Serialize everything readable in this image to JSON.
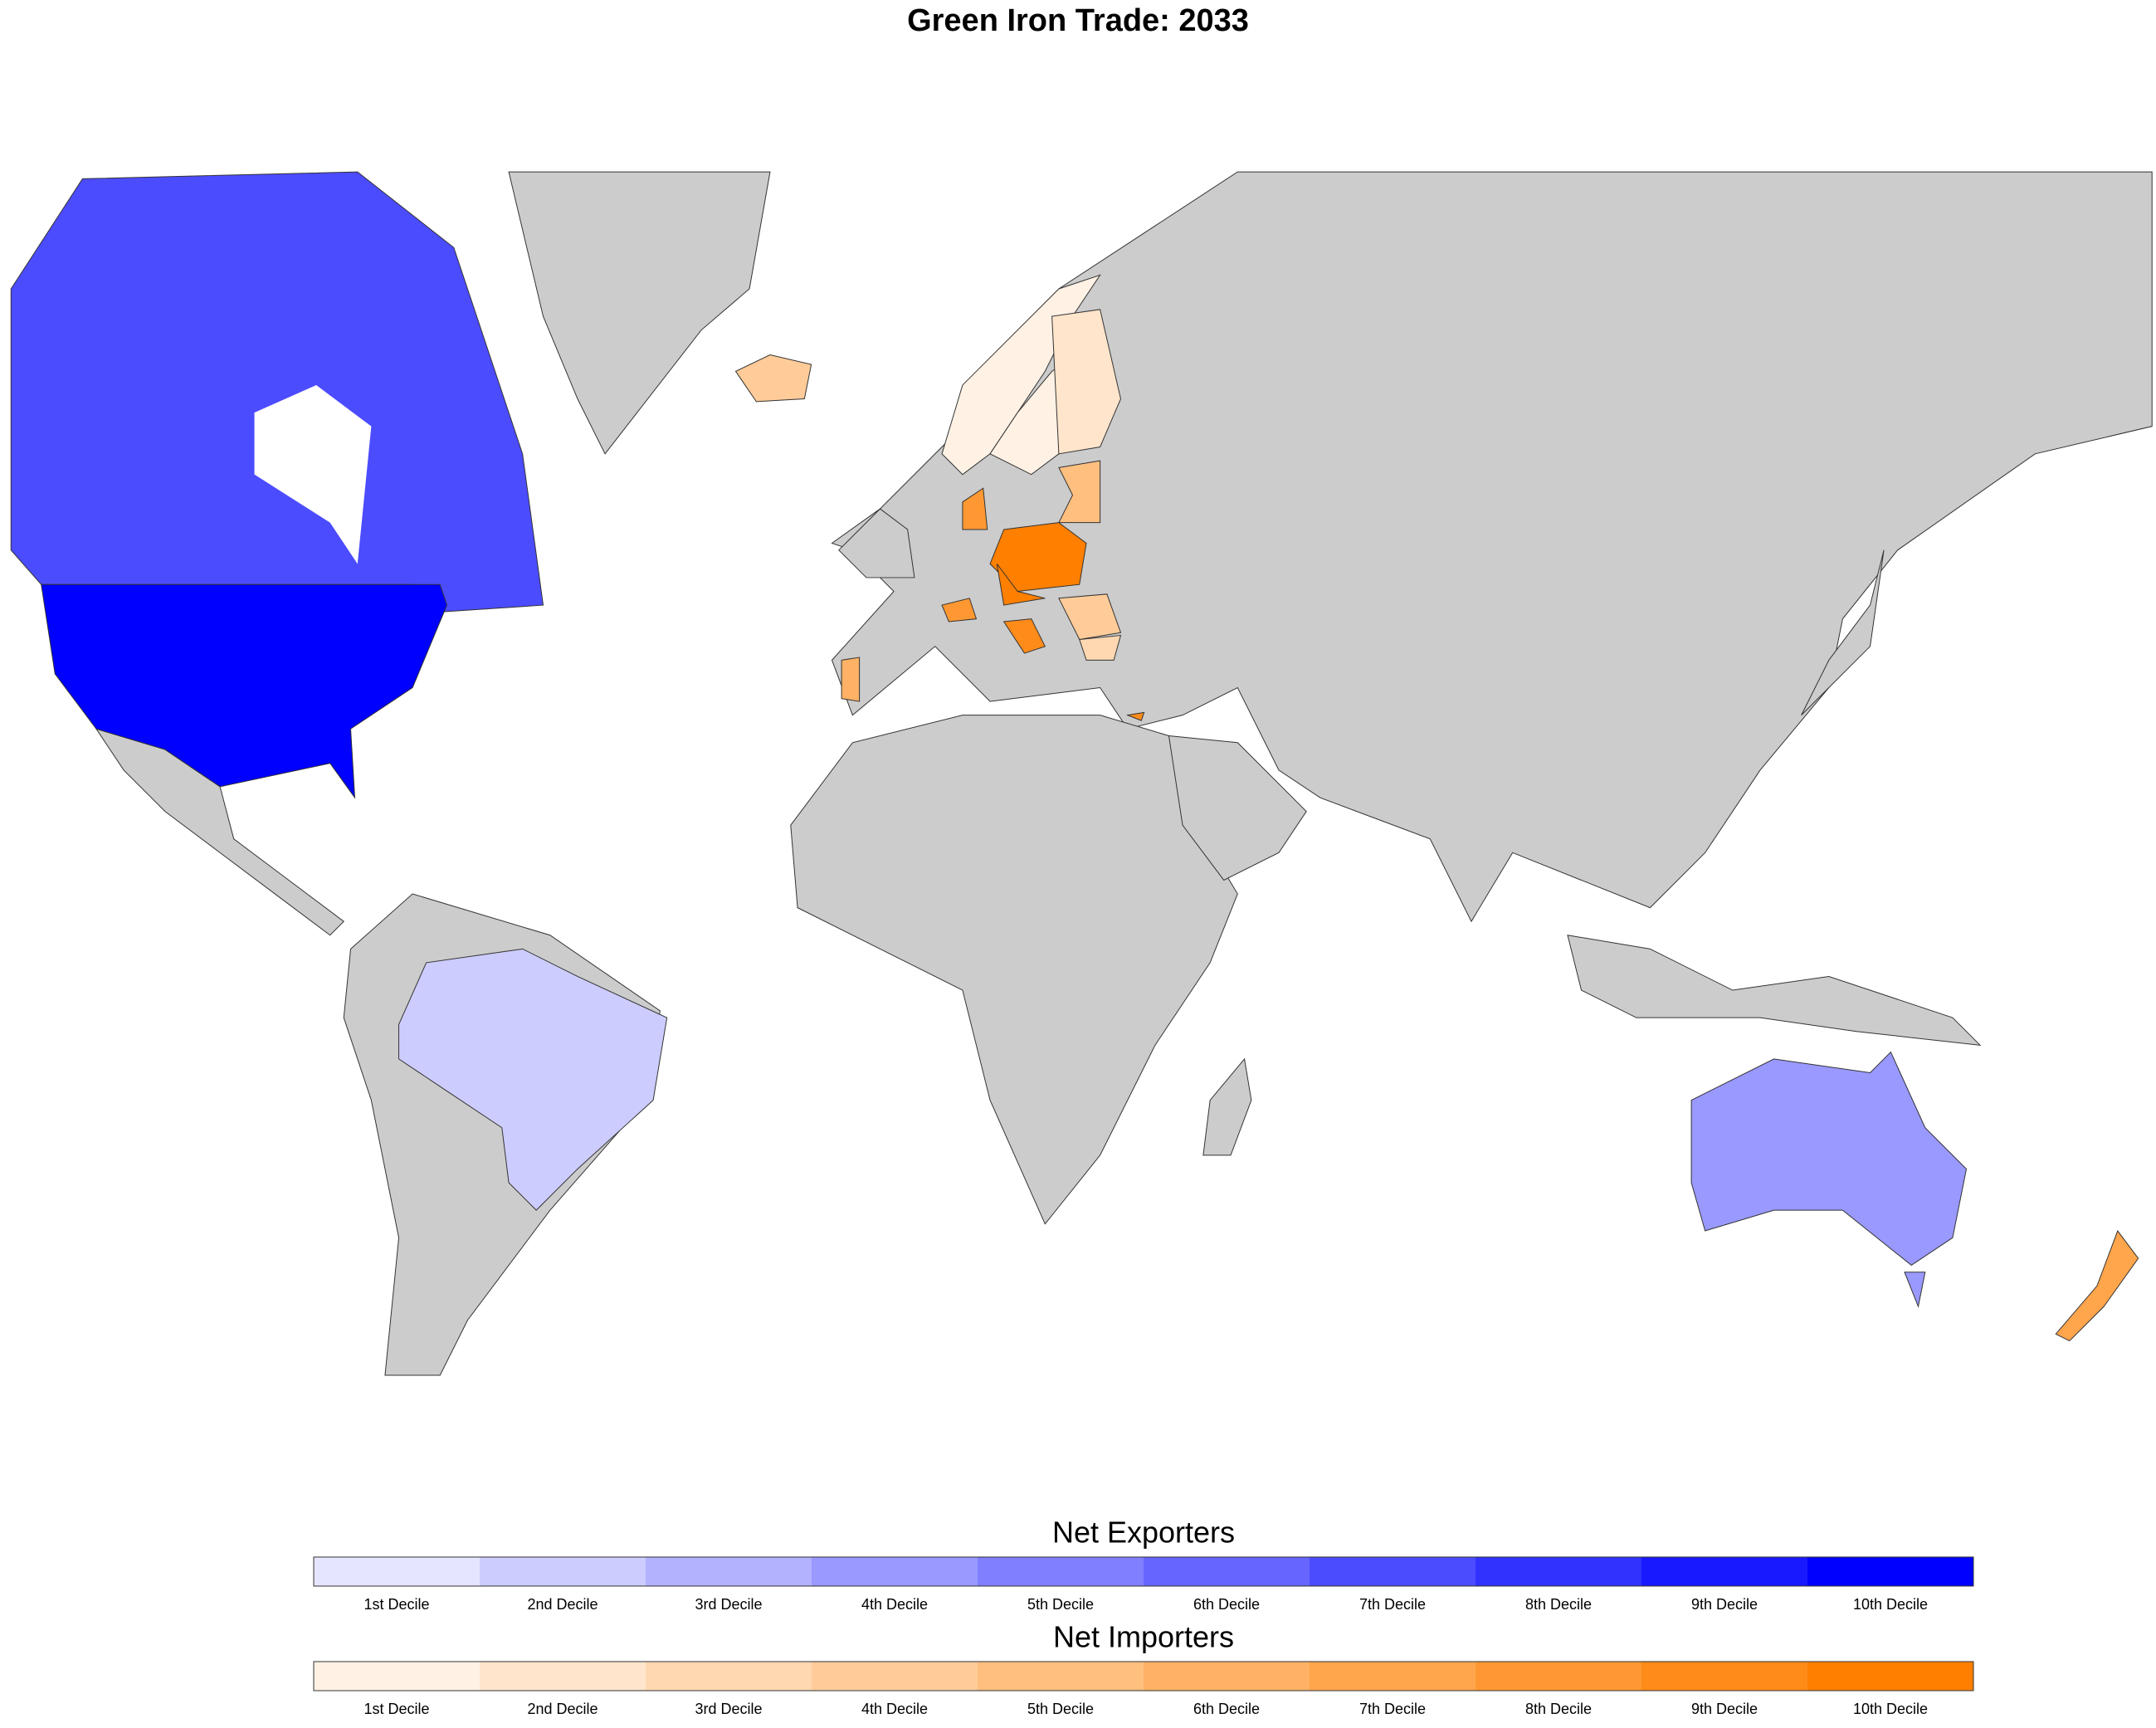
{
  "title": "Green Iron Trade: 2033",
  "map": {
    "land_color": "#cccccc",
    "border_color": "#333333"
  },
  "legends": [
    {
      "title": "Net Exporters",
      "labels": [
        "1st Decile",
        "2nd Decile",
        "3rd Decile",
        "4th Decile",
        "5th Decile",
        "6th Decile",
        "7th Decile",
        "8th Decile",
        "9th Decile",
        "10th Decile"
      ],
      "colors": [
        "#e5e5ff",
        "#ccccff",
        "#b2b2ff",
        "#9999ff",
        "#7f7fff",
        "#6666ff",
        "#4c4cff",
        "#3232ff",
        "#1919ff",
        "#0000ff"
      ]
    },
    {
      "title": "Net Importers",
      "labels": [
        "1st Decile",
        "2nd Decile",
        "3rd Decile",
        "4th Decile",
        "5th Decile",
        "6th Decile",
        "7th Decile",
        "8th Decile",
        "9th Decile",
        "10th Decile"
      ],
      "colors": [
        "#fff2e5",
        "#ffe5cc",
        "#ffd8b2",
        "#ffcc99",
        "#ffbf7f",
        "#ffb266",
        "#ffa54c",
        "#ff9832",
        "#ff8b19",
        "#ff7f00"
      ]
    }
  ]
}
